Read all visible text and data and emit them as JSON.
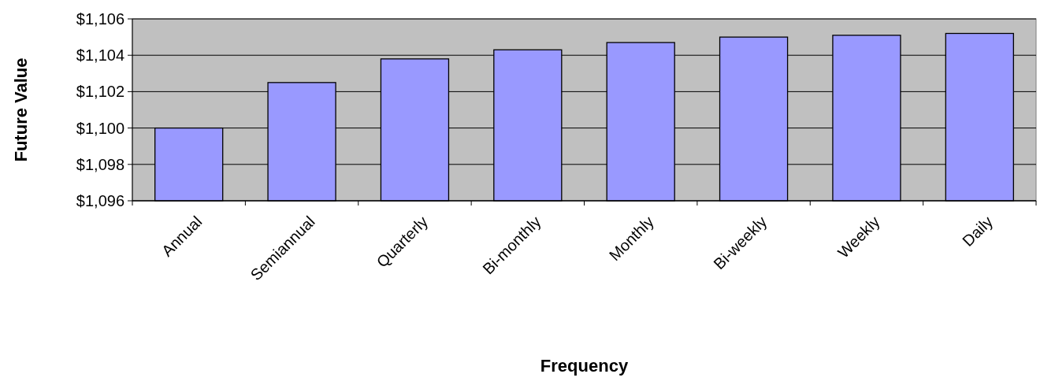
{
  "chart_data": {
    "type": "bar",
    "xlabel": "Frequency",
    "ylabel": "Future Value",
    "categories": [
      "Annual",
      "Semiannual",
      "Quarterly",
      "Bi-monthly",
      "Monthly",
      "Bi-weekly",
      "Weekly",
      "Daily"
    ],
    "values": [
      1100,
      1102.5,
      1103.8,
      1104.3,
      1104.7,
      1105,
      1105.1,
      1105.2
    ],
    "color": "#9999ff",
    "ylim": [
      1096,
      1106
    ],
    "yticks": [
      {
        "value": 1096,
        "label": "$1,096"
      },
      {
        "value": 1098,
        "label": "$1,098"
      },
      {
        "value": 1100,
        "label": "$1,100"
      },
      {
        "value": 1102,
        "label": "$1,102"
      },
      {
        "value": 1104,
        "label": "$1,104"
      },
      {
        "value": 1106,
        "label": "$1,106"
      }
    ],
    "grid": "y"
  }
}
